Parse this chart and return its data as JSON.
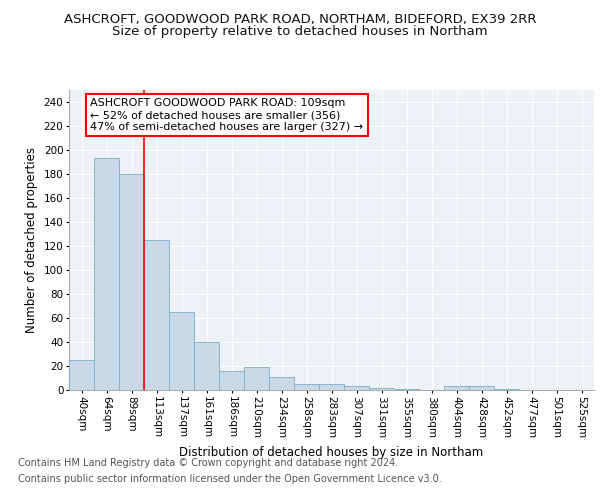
{
  "title1": "ASHCROFT, GOODWOOD PARK ROAD, NORTHAM, BIDEFORD, EX39 2RR",
  "title2": "Size of property relative to detached houses in Northam",
  "xlabel": "Distribution of detached houses by size in Northam",
  "ylabel": "Number of detached properties",
  "bar_labels": [
    "40sqm",
    "64sqm",
    "89sqm",
    "113sqm",
    "137sqm",
    "161sqm",
    "186sqm",
    "210sqm",
    "234sqm",
    "258sqm",
    "283sqm",
    "307sqm",
    "331sqm",
    "355sqm",
    "380sqm",
    "404sqm",
    "428sqm",
    "452sqm",
    "477sqm",
    "501sqm",
    "525sqm"
  ],
  "bar_values": [
    25,
    193,
    180,
    125,
    65,
    40,
    16,
    19,
    11,
    5,
    5,
    3,
    2,
    1,
    0,
    3,
    3,
    1,
    0,
    0,
    0
  ],
  "bar_color": "#c9d9e8",
  "bar_edgecolor": "#7aaec8",
  "vline_x": 2.5,
  "vline_color": "red",
  "annotation_text": "ASHCROFT GOODWOOD PARK ROAD: 109sqm\n← 52% of detached houses are smaller (356)\n47% of semi-detached houses are larger (327) →",
  "annotation_box_edgecolor": "red",
  "annotation_box_facecolor": "white",
  "ylim": [
    0,
    250
  ],
  "yticks": [
    0,
    20,
    40,
    60,
    80,
    100,
    120,
    140,
    160,
    180,
    200,
    220,
    240
  ],
  "footer_line1": "Contains HM Land Registry data © Crown copyright and database right 2024.",
  "footer_line2": "Contains public sector information licensed under the Open Government Licence v3.0.",
  "background_color": "#eef2f7",
  "grid_color": "#ffffff",
  "title1_fontsize": 9.5,
  "title2_fontsize": 9.5,
  "xlabel_fontsize": 8.5,
  "ylabel_fontsize": 8.5,
  "tick_fontsize": 7.5,
  "annot_fontsize": 8,
  "footer_fontsize": 7
}
